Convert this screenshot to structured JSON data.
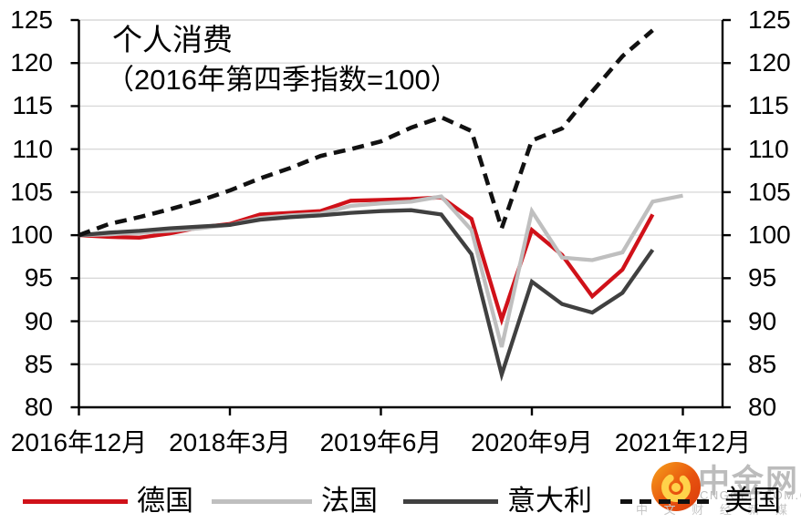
{
  "chart_data": {
    "type": "line",
    "title": "个人消费",
    "subtitle": "（2016年第四季指数=100）",
    "x_labels": [
      "2016年12月",
      "2018年3月",
      "2019年6月",
      "2020年9月",
      "2021年12月"
    ],
    "x_label_point_index": [
      0,
      5,
      10,
      15,
      20
    ],
    "x_unit": "quarter",
    "n_points": 21,
    "ylim": [
      80,
      125
    ],
    "ytick_step": 5,
    "yticks": [
      "80",
      "85",
      "90",
      "95",
      "100",
      "105",
      "110",
      "115",
      "120",
      "125"
    ],
    "grid": "horizontal",
    "legend_position": "bottom",
    "series": [
      {
        "key": "germany",
        "name": "德国",
        "color": "#D01119",
        "style": "solid",
        "values": [
          100,
          99.8,
          99.7,
          100.2,
          100.9,
          101.3,
          102.4,
          102.6,
          102.8,
          104,
          104.1,
          104.2,
          104.4,
          101.9,
          90.2,
          100.6,
          97.7,
          92.9,
          96,
          102.4
        ]
      },
      {
        "key": "france",
        "name": "法国",
        "color": "#BFBFBF",
        "style": "solid",
        "values": [
          100,
          100.1,
          100.3,
          100.5,
          100.8,
          101.2,
          102,
          102.3,
          102.5,
          103.4,
          103.7,
          103.9,
          104.5,
          100.6,
          87,
          102.8,
          97.4,
          97.1,
          98,
          103.9,
          104.6
        ]
      },
      {
        "key": "italy",
        "name": "意大利",
        "color": "#404040",
        "style": "solid",
        "values": [
          100,
          100.3,
          100.5,
          100.8,
          101,
          101.2,
          101.8,
          102.1,
          102.3,
          102.6,
          102.8,
          102.9,
          102.4,
          97.8,
          83.8,
          94.6,
          92,
          91,
          93.3,
          98.3
        ]
      },
      {
        "key": "usa",
        "name": "美国",
        "color": "#111111",
        "style": "dashed",
        "values": [
          100,
          101.3,
          102.1,
          103,
          104,
          105.2,
          106.6,
          107.8,
          109.2,
          110,
          110.9,
          112.5,
          113.7,
          112.1,
          100.8,
          111,
          112.4,
          116.7,
          120.8,
          123.8
        ]
      }
    ],
    "colors": {
      "gridline": "#D9D9D9",
      "axis": "#000000"
    }
  },
  "watermark": {
    "brand": "中金网",
    "domain": "CNGOLD.COM.CN",
    "tagline": "中 文 财 经 新 媒 体"
  }
}
